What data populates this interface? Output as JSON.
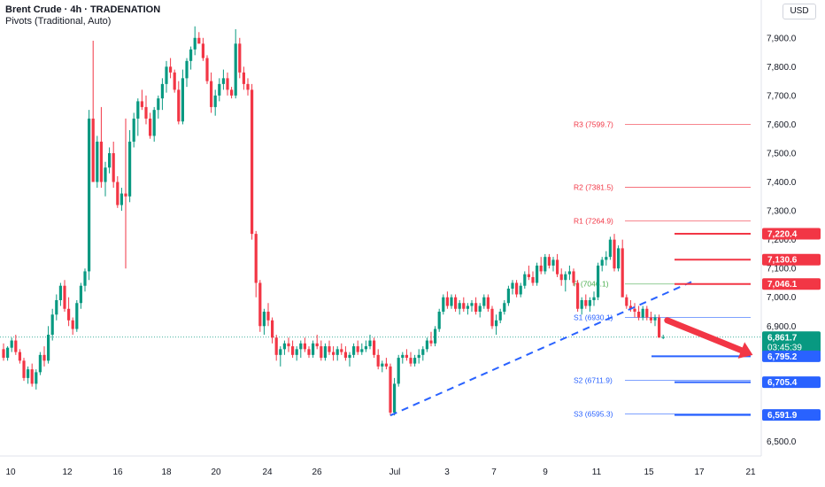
{
  "header": {
    "title": "Brent Crude · 4h · TRADENATION",
    "indicator": "Pivots (Traditional, Auto)",
    "currency": "USD"
  },
  "colors": {
    "up": "#089981",
    "down": "#f23645",
    "trend": "#2962ff",
    "pivot_r": "#f23645",
    "pivot_s": "#2962ff",
    "pivot_p": "#4caf50",
    "arrow": "#f23645"
  },
  "chart_data": {
    "type": "candlestick",
    "title": "Brent Crude · 4h · TRADENATION",
    "ylim": [
      6480,
      7970
    ],
    "y_ticks": [
      6500,
      6600,
      6700,
      6800,
      6900,
      7000,
      7100,
      7200,
      7300,
      7400,
      7500,
      7600,
      7700,
      7800,
      7900
    ],
    "y_tick_labels": [
      "6,500.0",
      "6,600.0",
      "6,700.0",
      "6,800.0",
      "6,900.0",
      "7,000.0",
      "7,100.0",
      "7,200.0",
      "7,300.0",
      "7,400.0",
      "7,500.0",
      "7,600.0",
      "7,700.0",
      "7,800.0",
      "7,900.0"
    ],
    "x_labels": [
      "10",
      "12",
      "16",
      "18",
      "20",
      "24",
      "26",
      "Jul",
      "3",
      "7",
      "9",
      "11",
      "15",
      "17",
      "21"
    ],
    "candles": [
      [
        6820,
        6840,
        6780,
        6790
      ],
      [
        6790,
        6830,
        6780,
        6825
      ],
      [
        6825,
        6860,
        6810,
        6850
      ],
      [
        6850,
        6870,
        6800,
        6810
      ],
      [
        6810,
        6820,
        6770,
        6780
      ],
      [
        6780,
        6790,
        6710,
        6720
      ],
      [
        6720,
        6760,
        6700,
        6750
      ],
      [
        6750,
        6770,
        6690,
        6700
      ],
      [
        6700,
        6750,
        6680,
        6740
      ],
      [
        6740,
        6810,
        6730,
        6800
      ],
      [
        6800,
        6830,
        6760,
        6780
      ],
      [
        6780,
        6900,
        6770,
        6870
      ],
      [
        6870,
        6960,
        6850,
        6940
      ],
      [
        6940,
        7010,
        6920,
        6990
      ],
      [
        6990,
        7050,
        6970,
        7040
      ],
      [
        7040,
        7060,
        6950,
        6960
      ],
      [
        6960,
        7000,
        6900,
        6920
      ],
      [
        6920,
        6930,
        6870,
        6890
      ],
      [
        6890,
        6990,
        6880,
        6980
      ],
      [
        6980,
        7050,
        6960,
        7040
      ],
      [
        7040,
        7100,
        7020,
        7090
      ],
      [
        7090,
        7650,
        7060,
        7620
      ],
      [
        7620,
        7890,
        7400,
        7400
      ],
      [
        7400,
        7560,
        7380,
        7540
      ],
      [
        7540,
        7660,
        7380,
        7400
      ],
      [
        7400,
        7470,
        7350,
        7450
      ],
      [
        7450,
        7520,
        7430,
        7500
      ],
      [
        7500,
        7540,
        7380,
        7400
      ],
      [
        7400,
        7420,
        7310,
        7320
      ],
      [
        7320,
        7380,
        7300,
        7360
      ],
      [
        7360,
        7620,
        7100,
        7350
      ],
      [
        7350,
        7580,
        7330,
        7540
      ],
      [
        7540,
        7640,
        7520,
        7620
      ],
      [
        7620,
        7690,
        7560,
        7680
      ],
      [
        7680,
        7720,
        7650,
        7660
      ],
      [
        7660,
        7700,
        7600,
        7620
      ],
      [
        7620,
        7640,
        7550,
        7560
      ],
      [
        7560,
        7660,
        7540,
        7650
      ],
      [
        7650,
        7700,
        7620,
        7690
      ],
      [
        7690,
        7760,
        7650,
        7740
      ],
      [
        7740,
        7820,
        7710,
        7800
      ],
      [
        7800,
        7830,
        7760,
        7780
      ],
      [
        7780,
        7790,
        7710,
        7720
      ],
      [
        7720,
        7750,
        7600,
        7610
      ],
      [
        7610,
        7790,
        7600,
        7760
      ],
      [
        7760,
        7830,
        7730,
        7820
      ],
      [
        7820,
        7870,
        7790,
        7860
      ],
      [
        7860,
        7940,
        7840,
        7900
      ],
      [
        7900,
        7920,
        7880,
        7880
      ],
      [
        7880,
        7900,
        7820,
        7830
      ],
      [
        7830,
        7840,
        7740,
        7750
      ],
      [
        7750,
        7780,
        7640,
        7660
      ],
      [
        7660,
        7720,
        7630,
        7700
      ],
      [
        7700,
        7760,
        7680,
        7740
      ],
      [
        7740,
        7790,
        7720,
        7760
      ],
      [
        7760,
        7780,
        7700,
        7720
      ],
      [
        7720,
        7730,
        7690,
        7700
      ],
      [
        7700,
        7930,
        7690,
        7880
      ],
      [
        7880,
        7900,
        7760,
        7780
      ],
      [
        7780,
        7800,
        7720,
        7740
      ],
      [
        7740,
        7760,
        7700,
        7720
      ],
      [
        7720,
        7740,
        7200,
        7220
      ],
      [
        7220,
        7230,
        7000,
        7050
      ],
      [
        7050,
        7060,
        6880,
        6900
      ],
      [
        6900,
        6960,
        6870,
        6950
      ],
      [
        6950,
        6980,
        6900,
        6920
      ],
      [
        6920,
        6930,
        6840,
        6860
      ],
      [
        6860,
        6870,
        6780,
        6800
      ],
      [
        6800,
        6830,
        6760,
        6820
      ],
      [
        6820,
        6850,
        6800,
        6840
      ],
      [
        6840,
        6860,
        6810,
        6830
      ],
      [
        6830,
        6850,
        6790,
        6800
      ],
      [
        6800,
        6830,
        6780,
        6820
      ],
      [
        6820,
        6850,
        6790,
        6840
      ],
      [
        6840,
        6860,
        6810,
        6820
      ],
      [
        6820,
        6830,
        6790,
        6800
      ],
      [
        6800,
        6850,
        6790,
        6840
      ],
      [
        6840,
        6870,
        6820,
        6830
      ],
      [
        6830,
        6850,
        6780,
        6790
      ],
      [
        6790,
        6840,
        6780,
        6830
      ],
      [
        6830,
        6850,
        6800,
        6810
      ],
      [
        6810,
        6830,
        6780,
        6800
      ],
      [
        6800,
        6830,
        6780,
        6820
      ],
      [
        6820,
        6840,
        6800,
        6810
      ],
      [
        6810,
        6830,
        6780,
        6790
      ],
      [
        6790,
        6810,
        6760,
        6800
      ],
      [
        6800,
        6840,
        6790,
        6830
      ],
      [
        6830,
        6850,
        6800,
        6810
      ],
      [
        6810,
        6840,
        6800,
        6820
      ],
      [
        6820,
        6850,
        6810,
        6830
      ],
      [
        6830,
        6870,
        6820,
        6850
      ],
      [
        6850,
        6860,
        6790,
        6800
      ],
      [
        6800,
        6820,
        6750,
        6760
      ],
      [
        6760,
        6780,
        6740,
        6770
      ],
      [
        6770,
        6790,
        6750,
        6760
      ],
      [
        6760,
        6770,
        6590,
        6600
      ],
      [
        6600,
        6720,
        6590,
        6700
      ],
      [
        6700,
        6800,
        6690,
        6790
      ],
      [
        6790,
        6810,
        6770,
        6800
      ],
      [
        6800,
        6820,
        6780,
        6790
      ],
      [
        6790,
        6810,
        6760,
        6770
      ],
      [
        6770,
        6800,
        6760,
        6790
      ],
      [
        6790,
        6820,
        6770,
        6800
      ],
      [
        6800,
        6830,
        6780,
        6820
      ],
      [
        6820,
        6860,
        6810,
        6850
      ],
      [
        6850,
        6880,
        6830,
        6840
      ],
      [
        6840,
        6900,
        6830,
        6890
      ],
      [
        6890,
        6960,
        6880,
        6950
      ],
      [
        6950,
        7010,
        6940,
        7000
      ],
      [
        7000,
        7020,
        6960,
        6970
      ],
      [
        6970,
        7010,
        6960,
        7000
      ],
      [
        7000,
        7010,
        6950,
        6960
      ],
      [
        6960,
        6990,
        6940,
        6980
      ],
      [
        6980,
        7000,
        6950,
        6960
      ],
      [
        6960,
        6980,
        6940,
        6970
      ],
      [
        6970,
        6990,
        6950,
        6980
      ],
      [
        6980,
        7000,
        6940,
        6950
      ],
      [
        6950,
        6980,
        6930,
        6970
      ],
      [
        6970,
        7010,
        6960,
        7000
      ],
      [
        7000,
        7010,
        6950,
        6960
      ],
      [
        6960,
        6970,
        6890,
        6900
      ],
      [
        6900,
        6940,
        6870,
        6920
      ],
      [
        6920,
        6960,
        6910,
        6950
      ],
      [
        6950,
        6990,
        6940,
        6980
      ],
      [
        6980,
        7040,
        6970,
        7030
      ],
      [
        7030,
        7060,
        7010,
        7050
      ],
      [
        7050,
        7060,
        7000,
        7010
      ],
      [
        7010,
        7050,
        7000,
        7040
      ],
      [
        7040,
        7090,
        7030,
        7080
      ],
      [
        7080,
        7110,
        7060,
        7070
      ],
      [
        7070,
        7090,
        7040,
        7050
      ],
      [
        7050,
        7120,
        7040,
        7110
      ],
      [
        7110,
        7140,
        7080,
        7090
      ],
      [
        7090,
        7150,
        7080,
        7140
      ],
      [
        7140,
        7150,
        7100,
        7110
      ],
      [
        7110,
        7140,
        7090,
        7130
      ],
      [
        7130,
        7150,
        7070,
        7080
      ],
      [
        7080,
        7100,
        7040,
        7060
      ],
      [
        7060,
        7090,
        7020,
        7080
      ],
      [
        7080,
        7110,
        7060,
        7090
      ],
      [
        7090,
        7100,
        7040,
        7050
      ],
      [
        7050,
        7060,
        6950,
        6960
      ],
      [
        6960,
        7000,
        6940,
        6990
      ],
      [
        6990,
        7010,
        6960,
        6970
      ],
      [
        6970,
        7000,
        6950,
        6990
      ],
      [
        6990,
        7020,
        6970,
        7000
      ],
      [
        7000,
        7120,
        6990,
        7110
      ],
      [
        7110,
        7140,
        7090,
        7130
      ],
      [
        7130,
        7160,
        7110,
        7140
      ],
      [
        7140,
        7210,
        7130,
        7200
      ],
      [
        7200,
        7220,
        7090,
        7100
      ],
      [
        7100,
        7180,
        7090,
        7170
      ],
      [
        7170,
        7200,
        7010,
        7000
      ],
      [
        7000,
        7010,
        6960,
        6970
      ],
      [
        6970,
        6990,
        6950,
        6960
      ],
      [
        6960,
        6980,
        6930,
        6950
      ],
      [
        6950,
        6970,
        6920,
        6930
      ],
      [
        6930,
        6970,
        6920,
        6960
      ],
      [
        6960,
        6970,
        6920,
        6930
      ],
      [
        6930,
        6950,
        6910,
        6920
      ],
      [
        6920,
        6940,
        6900,
        6930
      ],
      [
        6930,
        6940,
        6860,
        6860
      ],
      [
        6860,
        6870,
        6855,
        6862
      ]
    ],
    "hline_dotted": 6861.7,
    "price_labels": [
      {
        "text": "7,220.4",
        "value": 7220.4,
        "color": "#f23645"
      },
      {
        "text": "7,130.6",
        "value": 7130.6,
        "color": "#f23645"
      },
      {
        "text": "7,046.1",
        "value": 7046.1,
        "color": "#f23645"
      },
      {
        "text": "6,861.7",
        "value": 6861.7,
        "color": "#089981",
        "extra": "03:45:39"
      },
      {
        "text": "6,795.2",
        "value": 6795.2,
        "color": "#2962ff"
      },
      {
        "text": "6,705.4",
        "value": 6705.4,
        "color": "#2962ff"
      },
      {
        "text": "6,591.9",
        "value": 6591.9,
        "color": "#2962ff"
      }
    ],
    "pivots": [
      {
        "label": "R3 (7599.7)",
        "value": 7599.7,
        "kind": "r"
      },
      {
        "label": "R2 (7381.5)",
        "value": 7381.5,
        "kind": "r"
      },
      {
        "label": "R1 (7264.9)",
        "value": 7264.9,
        "kind": "r"
      },
      {
        "label": "P (7046.1)",
        "value": 7046.1,
        "kind": "p"
      },
      {
        "label": "S1 (6930.1)",
        "value": 6930.1,
        "kind": "s"
      },
      {
        "label": "S2 (6711.9)",
        "value": 6711.9,
        "kind": "s"
      },
      {
        "label": "S3 (6595.3)",
        "value": 6595.3,
        "kind": "s"
      }
    ],
    "hlines": [
      {
        "value": 7220.4,
        "color": "#f23645"
      },
      {
        "value": 7130.6,
        "color": "#f23645"
      },
      {
        "value": 7046.1,
        "color": "#f23645"
      },
      {
        "value": 6795.2,
        "color": "#2962ff"
      },
      {
        "value": 6705.4,
        "color": "#2962ff"
      },
      {
        "value": 6591.9,
        "color": "#2962ff"
      }
    ],
    "trendline": {
      "from_index": 95,
      "from_value": 6590,
      "to_index": 170,
      "to_value": 7060
    },
    "arrow": {
      "from_index": 163,
      "from_value": 6920,
      "to_index": 184,
      "to_value": 6800
    }
  }
}
